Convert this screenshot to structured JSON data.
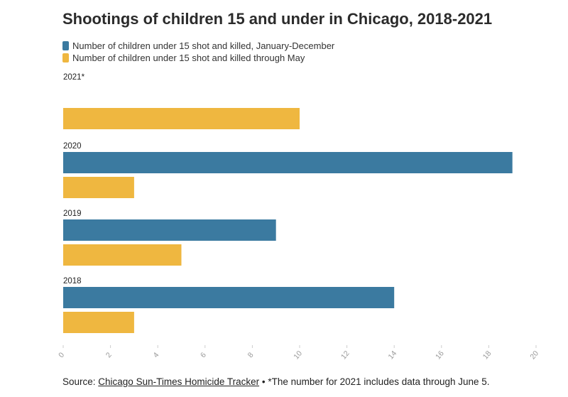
{
  "title": "Shootings of children 15 and under in Chicago, 2018-2021",
  "legend": [
    {
      "label": "Number of children under 15 shot and killed, January-December",
      "color": "#3b7aa0"
    },
    {
      "label": "Number of children under 15 shot and killed through May",
      "color": "#efb740"
    }
  ],
  "footer": {
    "source_prefix": "Source: ",
    "source_link": "Chicago Sun-Times Homicide Tracker",
    "separator": " • ",
    "note": "*The number for 2021 includes data through June 5."
  },
  "chart_data": {
    "type": "bar",
    "orientation": "horizontal",
    "title": "Shootings of children 15 and under in Chicago, 2018-2021",
    "categories": [
      "2021*",
      "2020",
      "2019",
      "2018"
    ],
    "series": [
      {
        "name": "Number of children under 15 shot and killed, January-December",
        "color": "#3b7aa0",
        "values": [
          null,
          19,
          9,
          14
        ]
      },
      {
        "name": "Number of children under 15 shot and killed through May",
        "color": "#efb740",
        "values": [
          10,
          3,
          5,
          3
        ]
      }
    ],
    "xlim": [
      0,
      20
    ],
    "xticks": [
      0,
      2,
      4,
      6,
      8,
      10,
      12,
      14,
      16,
      18,
      20
    ],
    "xlabel": "",
    "ylabel": "",
    "grid": false,
    "legend_position": "top"
  }
}
